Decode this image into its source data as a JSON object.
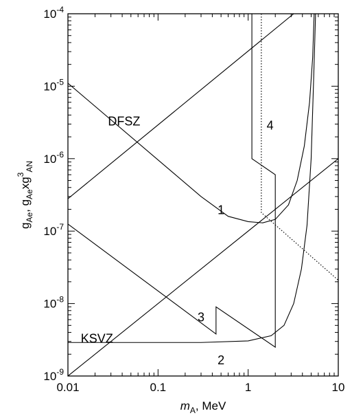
{
  "chart_data": {
    "type": "line",
    "xscale": "log",
    "yscale": "log",
    "xlim": [
      0.01,
      10
    ],
    "ylim": [
      1e-09,
      0.0001
    ],
    "grid": false,
    "xlabel": {
      "italic": "m",
      "sub": "A",
      "rest": ", MeV"
    },
    "ylabel": {
      "parts": [
        {
          "t": "g",
          "s": ""
        },
        {
          "t": "Ae",
          "s": "sub"
        },
        {
          "t": ", g",
          "s": ""
        },
        {
          "t": "Ae",
          "s": "sub"
        },
        {
          "t": "xg",
          "s": ""
        },
        {
          "t": "3",
          "s": "sup"
        },
        {
          "t": "AN",
          "s": "sub"
        }
      ]
    },
    "x_ticks": [
      {
        "v": 0.01,
        "label": "0.01"
      },
      {
        "v": 0.1,
        "label": "0.1"
      },
      {
        "v": 1,
        "label": "1"
      },
      {
        "v": 10,
        "label": "10"
      }
    ],
    "y_ticks": [
      {
        "v": 1e-09,
        "mant": "10",
        "exp": "-9"
      },
      {
        "v": 1e-08,
        "mant": "10",
        "exp": "-8"
      },
      {
        "v": 1e-07,
        "mant": "10",
        "exp": "-7"
      },
      {
        "v": 1e-06,
        "mant": "10",
        "exp": "-6"
      },
      {
        "v": 1e-05,
        "mant": "10",
        "exp": "-5"
      },
      {
        "v": 0.0001,
        "mant": "10",
        "exp": "-4"
      }
    ],
    "series": [
      {
        "style": "solid",
        "points": [
          [
            0.01,
            2.8e-07
          ],
          [
            3.2,
            0.0001
          ]
        ]
      },
      {
        "style": "solid",
        "points": [
          [
            0.01,
            1e-09
          ],
          [
            10,
            1e-06
          ]
        ]
      },
      {
        "style": "solid",
        "points": [
          [
            0.01,
            1.1e-05
          ],
          [
            0.3,
            3e-07
          ],
          [
            0.6,
            1.6e-07
          ],
          [
            1.0,
            1.35e-07
          ],
          [
            1.45,
            1.3e-07
          ],
          [
            2.0,
            1.45e-07
          ],
          [
            2.8,
            2.3e-07
          ],
          [
            3.5,
            5e-07
          ],
          [
            4.2,
            1.5e-06
          ],
          [
            4.8,
            6e-06
          ],
          [
            5.2,
            2.5e-05
          ],
          [
            5.4,
            0.0001
          ]
        ]
      },
      {
        "style": "solid",
        "points": [
          [
            0.01,
            1.25e-07
          ],
          [
            0.44,
            3.8e-09
          ],
          [
            0.44,
            9e-09
          ],
          [
            2.0,
            2.5e-09
          ],
          [
            2.0,
            6e-07
          ],
          [
            1.1,
            1e-06
          ],
          [
            1.1,
            0.0001
          ]
        ]
      },
      {
        "style": "solid",
        "points": [
          [
            0.01,
            2.9e-09
          ],
          [
            0.3,
            2.9e-09
          ],
          [
            1.0,
            3.05e-09
          ],
          [
            1.8,
            3.6e-09
          ],
          [
            2.5,
            5e-09
          ],
          [
            3.2,
            1e-08
          ],
          [
            3.9,
            3e-08
          ],
          [
            4.5,
            1.2e-07
          ],
          [
            5.0,
            1e-06
          ],
          [
            5.3,
            1e-05
          ],
          [
            5.6,
            0.0001
          ]
        ]
      },
      {
        "style": "dotted",
        "points": [
          [
            1.4,
            0.0001
          ],
          [
            1.4,
            1.8e-07
          ],
          [
            10,
            2.1e-08
          ]
        ]
      }
    ],
    "annotations": [
      {
        "text": "DFSZ",
        "x": 0.042,
        "y": 3.2e-06,
        "kind": "model"
      },
      {
        "text": "KSVZ",
        "x": 0.021,
        "y": 3.2e-09,
        "kind": "model"
      },
      {
        "text": "1",
        "x": 0.5,
        "y": 1.9e-07,
        "kind": "region"
      },
      {
        "text": "2",
        "x": 0.5,
        "y": 1.6e-09,
        "kind": "region"
      },
      {
        "text": "3",
        "x": 0.3,
        "y": 6.3e-09,
        "kind": "region"
      },
      {
        "text": "4",
        "x": 1.75,
        "y": 2.8e-06,
        "kind": "region"
      }
    ]
  }
}
